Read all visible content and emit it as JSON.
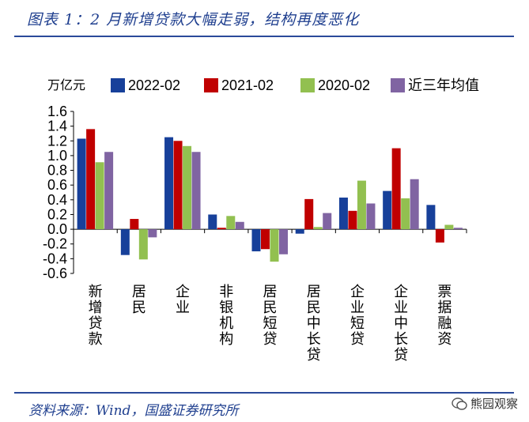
{
  "title": "图表 1：2 月新增贷款大幅走弱，结构再度恶化",
  "source": "资料来源：Wind，国盛证券研究所",
  "watermark": "熊园观察",
  "chart_data": {
    "type": "bar",
    "unit_label": "万亿元",
    "categories": [
      "新增贷款",
      "居民",
      "企业",
      "非银机构",
      "居民短贷",
      "居民中长贷",
      "企业短贷",
      "企业中长贷",
      "票据融资"
    ],
    "series": [
      {
        "name": "2022-02",
        "color": "#17409a",
        "values": [
          1.23,
          -0.35,
          1.25,
          0.2,
          -0.3,
          -0.06,
          0.43,
          0.52,
          0.33
        ]
      },
      {
        "name": "2021-02",
        "color": "#c00000",
        "values": [
          1.36,
          0.14,
          1.2,
          0.02,
          -0.27,
          0.41,
          0.25,
          1.1,
          -0.18
        ]
      },
      {
        "name": "2020-02",
        "color": "#92c050",
        "values": [
          0.91,
          -0.41,
          1.13,
          0.18,
          -0.44,
          0.03,
          0.66,
          0.42,
          0.06
        ]
      },
      {
        "name": "近三年均值",
        "color": "#8064a2",
        "values": [
          1.05,
          -0.11,
          1.05,
          0.1,
          -0.34,
          0.22,
          0.35,
          0.68,
          0.02
        ]
      }
    ],
    "ylim": [
      -0.6,
      1.6
    ],
    "yticks": [
      "1.6",
      "1.4",
      "1.2",
      "1.0",
      "0.8",
      "0.6",
      "0.4",
      "0.2",
      "0.0",
      "-0.2",
      "-0.4",
      "-0.6"
    ],
    "ytick_values": [
      1.6,
      1.4,
      1.2,
      1.0,
      0.8,
      0.6,
      0.4,
      0.2,
      0.0,
      -0.2,
      -0.4,
      -0.6
    ],
    "legend_position": "top",
    "grid": false
  }
}
